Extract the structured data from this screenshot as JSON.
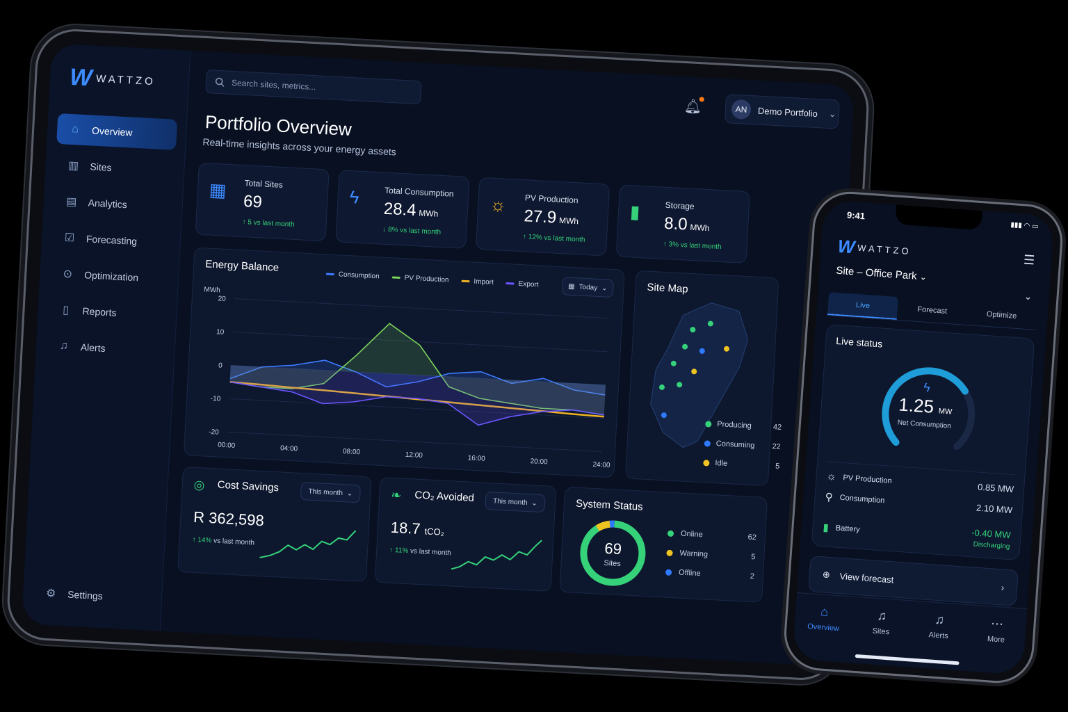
{
  "brand": {
    "logo_mark": "W",
    "name": "WATTZO"
  },
  "colors": {
    "accent": "#3d8bff",
    "consumption": "#3d7bff",
    "pv_production": "#7bd35a",
    "import": "#f0b323",
    "export": "#6a55ff",
    "positive": "#35d27a",
    "online": "#35d27a",
    "warning": "#f0c420",
    "offline": "#2f7bff"
  },
  "sidebar": {
    "items": [
      {
        "label": "Overview",
        "icon": "home-icon",
        "active": true
      },
      {
        "label": "Sites",
        "icon": "buildings-icon"
      },
      {
        "label": "Analytics",
        "icon": "bar-chart-icon"
      },
      {
        "label": "Forecasting",
        "icon": "calendar-check-icon"
      },
      {
        "label": "Optimization",
        "icon": "location-pin-icon"
      },
      {
        "label": "Reports",
        "icon": "document-icon"
      },
      {
        "label": "Alerts",
        "icon": "bell-icon"
      }
    ],
    "settings_label": "Settings"
  },
  "header": {
    "search_placeholder": "Search sites, metrics...",
    "avatar_initials": "AN",
    "portfolio_label": "Demo Portfolio",
    "title": "Portfolio Overview",
    "subtitle": "Real-time insights across your energy assets"
  },
  "kpis": [
    {
      "label": "Total Sites",
      "value": "69",
      "unit": "",
      "delta": "↑ 5 vs last month",
      "icon": "buildings-icon"
    },
    {
      "label": "Total Consumption",
      "value": "28.4",
      "unit": "MWh",
      "delta": "↓ 8% vs last month",
      "icon": "lightning-icon"
    },
    {
      "label": "PV Production",
      "value": "27.9",
      "unit": "MWh",
      "delta": "↑ 12% vs last month",
      "icon": "sun-icon"
    },
    {
      "label": "Storage",
      "value": "8.0",
      "unit": "MWh",
      "delta": "↑ 3% vs last month",
      "icon": "battery-icon"
    }
  ],
  "energy_balance": {
    "title": "Energy Balance",
    "range_label": "Today",
    "legend": [
      "Consumption",
      "PV Production",
      "Import",
      "Export"
    ]
  },
  "chart_data": {
    "type": "area",
    "ylabel": "MWh",
    "ylim": [
      -20,
      20
    ],
    "yticks": [
      "20",
      "10",
      "0",
      "-10",
      "-20"
    ],
    "categories": [
      "00:00",
      "04:00",
      "08:00",
      "12:00",
      "16:00",
      "20:00",
      "24:00"
    ],
    "x": [
      0,
      2,
      4,
      6,
      8,
      10,
      12,
      14,
      16,
      18,
      20,
      22,
      24
    ],
    "series": [
      {
        "name": "Consumption",
        "values": [
          -4,
          0,
          1,
          3,
          0,
          -4,
          -2,
          1,
          2,
          -1,
          1,
          -2,
          -3
        ]
      },
      {
        "name": "PV Production",
        "values": [
          -5,
          -6,
          -6,
          -4,
          5,
          15,
          9,
          -3,
          -6,
          -7,
          -8,
          -8,
          -9
        ]
      },
      {
        "name": "Import",
        "values": [
          -5,
          -5.3,
          -5.7,
          -6,
          -6.4,
          -6.8,
          -7.2,
          -7.6,
          -8,
          -8.4,
          -8.8,
          -9.2,
          -9.5
        ]
      },
      {
        "name": "Export",
        "values": [
          -5,
          -6,
          -7,
          -10,
          -9,
          -7,
          -7,
          -8,
          -14,
          -11,
          -9,
          -8,
          -9
        ]
      }
    ]
  },
  "site_map": {
    "title": "Site Map",
    "legend": [
      {
        "label": "Producing",
        "count": "42",
        "color": "#35d27a"
      },
      {
        "label": "Consuming",
        "count": "22",
        "color": "#2f7bff"
      },
      {
        "label": "Idle",
        "count": "5",
        "color": "#f0c420"
      }
    ]
  },
  "cost_savings": {
    "title": "Cost Savings",
    "range": "This month",
    "value": "R 362,598",
    "delta": "↑ 14%",
    "delta_note": "vs last month"
  },
  "co2": {
    "title": "CO₂ Avoided",
    "range": "This month",
    "value": "18.7",
    "unit": "tCO₂",
    "delta": "↑ 11%",
    "delta_note": "vs last month"
  },
  "system_status": {
    "title": "System Status",
    "total": "69",
    "total_label": "Sites",
    "items": [
      {
        "label": "Online",
        "count": "62",
        "color": "#35d27a"
      },
      {
        "label": "Warning",
        "count": "5",
        "color": "#f0c420"
      },
      {
        "label": "Offline",
        "count": "2",
        "color": "#2f7bff"
      }
    ]
  },
  "phone": {
    "time": "9:41",
    "status_icons": "▮▮▮ ◠ ▭",
    "site_label": "Site – Office Park",
    "tabs": [
      "Live",
      "Forecast",
      "Optimize"
    ],
    "live_title": "Live status",
    "gauge_value": "1.25",
    "gauge_unit": "MW",
    "gauge_label": "Net Consumption",
    "gauge_fraction": 0.7,
    "rows": [
      {
        "label": "PV Production",
        "value": "0.85 MW",
        "icon": "sun-icon"
      },
      {
        "label": "Consumption",
        "value": "2.10 MW",
        "icon": "plug-icon"
      },
      {
        "label": "Battery",
        "value": "-0.40 MW",
        "sub": "Discharging",
        "icon": "battery-icon"
      }
    ],
    "view_forecast": "View forecast",
    "bottom_nav": [
      "Overview",
      "Sites",
      "Alerts",
      "More"
    ]
  }
}
